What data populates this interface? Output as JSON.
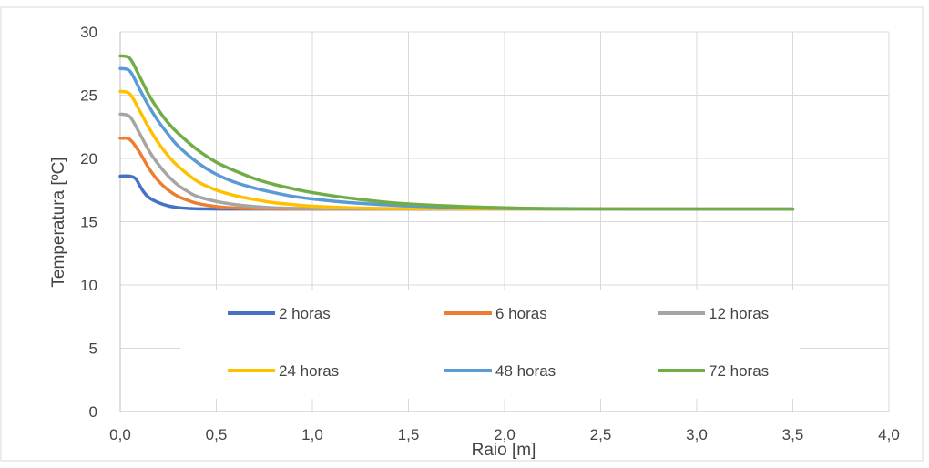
{
  "chart_data": {
    "type": "line",
    "title": "",
    "xlabel": "Raio  [m]",
    "ylabel": "Temperatura [ºC]",
    "xlim": [
      0,
      4
    ],
    "ylim": [
      0,
      30
    ],
    "x_ticks": [
      "0,0",
      "0,5",
      "1,0",
      "1,5",
      "2,0",
      "2,5",
      "3,0",
      "3,5",
      "4,0"
    ],
    "y_ticks": [
      "0",
      "5",
      "10",
      "15",
      "20",
      "25",
      "30"
    ],
    "grid": true,
    "legend_position": "inside-center",
    "series": [
      {
        "name": "2 horas",
        "color": "#4472C4",
        "x": [
          0,
          0.05,
          0.08,
          0.1,
          0.12,
          0.15,
          0.2,
          0.25,
          0.3,
          0.35,
          0.4,
          0.5,
          0.6,
          0.8,
          1.0,
          1.5,
          2.0,
          2.5,
          3.0,
          3.5
        ],
        "y": [
          18.6,
          18.6,
          18.4,
          17.9,
          17.4,
          16.9,
          16.5,
          16.25,
          16.12,
          16.05,
          16.02,
          16.0,
          16.0,
          16.0,
          16.0,
          16.0,
          16.0,
          16.0,
          16.0,
          16.0
        ]
      },
      {
        "name": "6 horas",
        "color": "#ED7D31",
        "x": [
          0,
          0.05,
          0.1,
          0.15,
          0.2,
          0.25,
          0.3,
          0.35,
          0.4,
          0.5,
          0.6,
          0.7,
          0.8,
          1.0,
          1.2,
          1.5,
          2.0,
          2.5,
          3.0,
          3.5
        ],
        "y": [
          21.6,
          21.5,
          20.5,
          19.2,
          18.2,
          17.5,
          17.0,
          16.7,
          16.45,
          16.2,
          16.08,
          16.03,
          16.01,
          16.0,
          16.0,
          16.0,
          16.0,
          16.0,
          16.0,
          16.0
        ]
      },
      {
        "name": "12 horas",
        "color": "#A5A5A5",
        "x": [
          0,
          0.05,
          0.1,
          0.15,
          0.2,
          0.25,
          0.3,
          0.35,
          0.4,
          0.5,
          0.6,
          0.7,
          0.8,
          1.0,
          1.2,
          1.5,
          2.0,
          2.5,
          3.0,
          3.5
        ],
        "y": [
          23.5,
          23.3,
          22.0,
          20.6,
          19.5,
          18.6,
          17.9,
          17.4,
          17.0,
          16.6,
          16.35,
          16.2,
          16.1,
          16.03,
          16.01,
          16.0,
          16.0,
          16.0,
          16.0,
          16.0
        ]
      },
      {
        "name": "24 horas",
        "color": "#FFC000",
        "x": [
          0,
          0.05,
          0.1,
          0.15,
          0.2,
          0.25,
          0.3,
          0.4,
          0.5,
          0.6,
          0.7,
          0.8,
          0.9,
          1.0,
          1.2,
          1.5,
          2.0,
          2.5,
          3.0,
          3.5
        ],
        "y": [
          25.3,
          25.1,
          23.8,
          22.4,
          21.2,
          20.2,
          19.4,
          18.2,
          17.5,
          17.05,
          16.75,
          16.5,
          16.35,
          16.22,
          16.1,
          16.03,
          16.0,
          16.0,
          16.0,
          16.0
        ]
      },
      {
        "name": "48 horas",
        "color": "#5B9BD5",
        "x": [
          0,
          0.05,
          0.1,
          0.15,
          0.2,
          0.25,
          0.3,
          0.4,
          0.5,
          0.6,
          0.7,
          0.8,
          0.9,
          1.0,
          1.2,
          1.5,
          2.0,
          2.5,
          3.0,
          3.5
        ],
        "y": [
          27.1,
          26.9,
          25.5,
          24.1,
          22.9,
          21.9,
          21.0,
          19.7,
          18.75,
          18.1,
          17.65,
          17.3,
          17.0,
          16.8,
          16.5,
          16.25,
          16.05,
          16.0,
          16.0,
          16.0
        ]
      },
      {
        "name": "72 horas",
        "color": "#70AD47",
        "x": [
          0,
          0.05,
          0.1,
          0.15,
          0.2,
          0.25,
          0.3,
          0.4,
          0.5,
          0.6,
          0.7,
          0.8,
          0.9,
          1.0,
          1.2,
          1.5,
          2.0,
          2.5,
          3.0,
          3.5
        ],
        "y": [
          28.1,
          27.9,
          26.5,
          25.0,
          23.8,
          22.8,
          22.0,
          20.7,
          19.7,
          19.0,
          18.4,
          17.95,
          17.6,
          17.3,
          16.85,
          16.4,
          16.1,
          16.02,
          16.0,
          16.0
        ]
      }
    ]
  }
}
